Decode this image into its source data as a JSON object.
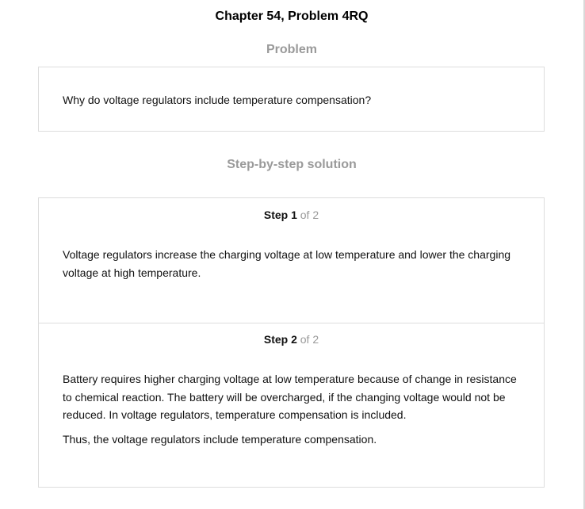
{
  "title": "Chapter 54, Problem 4RQ",
  "problem": {
    "heading": "Problem",
    "text": "Why do voltage regulators include temperature compensation?"
  },
  "solution": {
    "heading": "Step-by-step solution",
    "steps": [
      {
        "label": "Step 1",
        "of_text": "of 2",
        "paragraphs": [
          "Voltage regulators increase the charging voltage at low temperature and lower the charging voltage at high temperature."
        ]
      },
      {
        "label": "Step 2",
        "of_text": "of 2",
        "paragraphs": [
          "Battery requires higher charging voltage at low temperature because of change in resistance to chemical reaction. The battery will be overcharged, if the changing voltage would not be reduced. In voltage regulators, temperature compensation is included.",
          "Thus, the voltage regulators include temperature compensation."
        ]
      }
    ]
  }
}
